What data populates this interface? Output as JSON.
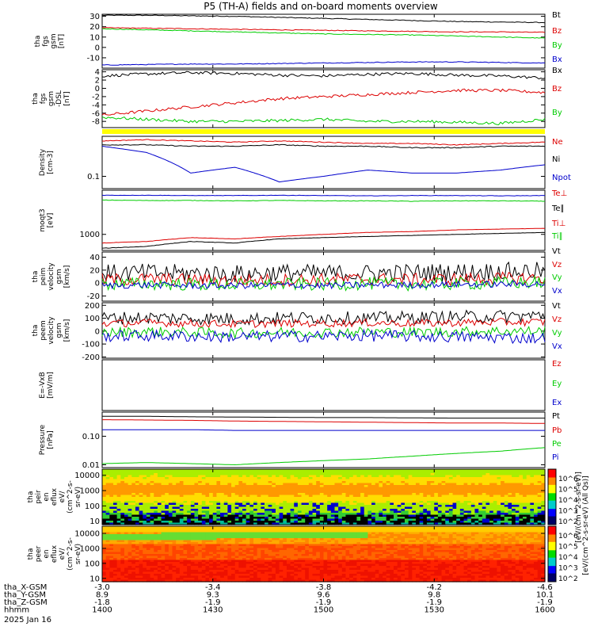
{
  "title": "P5 (TH-A) fields and on-board moments overview",
  "colors": {
    "black": "#000000",
    "red": "#dd0000",
    "green": "#00cc00",
    "blue": "#0000cc",
    "yellow": "#ffff00"
  },
  "chart_data": [
    {
      "type": "line",
      "id": "fgs-gsm",
      "ylabel_lines": [
        "tha",
        "fgs",
        "gsm",
        "[nT]"
      ],
      "ylim": [
        -20,
        32
      ],
      "yticks": [
        "30",
        "20",
        "10",
        "0",
        "-10"
      ],
      "ytick_values": [
        30,
        20,
        10,
        0,
        -10
      ],
      "legend": [
        "Bt",
        "Bz",
        "By",
        "Bx"
      ],
      "series": [
        {
          "name": "Bt",
          "color": "black",
          "values": [
            31,
            31,
            30.5,
            30,
            29,
            28,
            27,
            26,
            25,
            24.5,
            24
          ]
        },
        {
          "name": "Bz",
          "color": "red",
          "values": [
            19,
            18.5,
            18,
            17.5,
            17,
            16.5,
            16,
            15.5,
            15,
            15,
            14.5
          ]
        },
        {
          "name": "By",
          "color": "green",
          "values": [
            18,
            17,
            16,
            15,
            14,
            13,
            12.5,
            12,
            11,
            10,
            9
          ]
        },
        {
          "name": "Bx",
          "color": "blue",
          "values": [
            -17,
            -16.5,
            -16,
            -16,
            -15.5,
            -15,
            -14.5,
            -14,
            -14,
            -14.5,
            -15
          ]
        }
      ]
    },
    {
      "type": "line",
      "id": "fgs-gsm-dsl",
      "ylabel_lines": [
        "tha",
        "fgs",
        "gsm",
        "-DSL",
        "[nT]"
      ],
      "ylim": [
        -9.5,
        4.5
      ],
      "yticks": [
        "4",
        "2",
        "0",
        "-2",
        "-4",
        "-6",
        "-8"
      ],
      "ytick_values": [
        4,
        2,
        0,
        -2,
        -4,
        -6,
        -8
      ],
      "legend": [
        "Bx",
        "Bz",
        "By"
      ],
      "series": [
        {
          "name": "Bx",
          "color": "black",
          "values": [
            3,
            3.5,
            3.8,
            3.6,
            3.2,
            3,
            3.4,
            3.6,
            3.2,
            3,
            2.5
          ]
        },
        {
          "name": "Bz",
          "color": "red",
          "values": [
            -6.5,
            -5.5,
            -4.5,
            -3.5,
            -2.5,
            -2,
            -1.5,
            -1,
            -0.5,
            -0.5,
            -1
          ]
        },
        {
          "name": "By",
          "color": "green",
          "values": [
            -7,
            -7.5,
            -8,
            -8,
            -7.8,
            -7.5,
            -8,
            -8,
            -8.2,
            -8.5,
            -7.5
          ]
        }
      ]
    },
    {
      "type": "line",
      "id": "density",
      "ylabel_lines": [
        "Density",
        "[cm-3]"
      ],
      "scale": "log",
      "ylim": [
        0.07,
        0.32
      ],
      "yticks": [
        "0.1"
      ],
      "ytick_values": [
        0.1
      ],
      "legend": [
        "Ne",
        "Ni",
        "Npot"
      ],
      "series": [
        {
          "name": "Ne",
          "color": "red",
          "values": [
            0.28,
            0.29,
            0.28,
            0.27,
            0.28,
            0.27,
            0.26,
            0.26,
            0.25,
            0.26,
            0.27
          ]
        },
        {
          "name": "Ni",
          "color": "black",
          "values": [
            0.25,
            0.25,
            0.24,
            0.24,
            0.25,
            0.24,
            0.24,
            0.23,
            0.23,
            0.24,
            0.24
          ]
        },
        {
          "name": "Npot",
          "color": "blue",
          "values": [
            0.24,
            0.2,
            0.11,
            0.13,
            0.085,
            0.1,
            0.12,
            0.11,
            0.11,
            0.12,
            0.14
          ]
        }
      ]
    },
    {
      "type": "line",
      "id": "temperature",
      "ylabel_lines": [
        "moqt3",
        "[eV]"
      ],
      "scale": "log",
      "ylim": [
        450,
        9000
      ],
      "yticks": [
        "1000"
      ],
      "ytick_values": [
        1000
      ],
      "legend": [
        "Te⊥",
        "Te∥",
        "Ti⊥",
        "Ti∥"
      ],
      "series": [
        {
          "name": "Te⊥",
          "color": "blue",
          "values": [
            7000,
            7000,
            6900,
            6900,
            7000,
            6900,
            6800,
            6900,
            6900,
            6800,
            6900
          ]
        },
        {
          "name": "Te∥",
          "color": "green",
          "values": [
            5500,
            5400,
            5400,
            5300,
            5400,
            5300,
            5300,
            5200,
            5300,
            5300,
            5200
          ]
        },
        {
          "name": "Ti⊥",
          "color": "red",
          "values": [
            650,
            700,
            850,
            800,
            900,
            1000,
            1100,
            1150,
            1250,
            1300,
            1350
          ]
        },
        {
          "name": "Ti∥",
          "color": "black",
          "values": [
            500,
            550,
            700,
            650,
            800,
            850,
            900,
            950,
            1000,
            1050,
            1100
          ]
        }
      ]
    },
    {
      "type": "line",
      "id": "peim-velocity",
      "ylabel_lines": [
        "tha",
        "peim",
        "velocity",
        "gsm",
        "[km/s]"
      ],
      "ylim": [
        -28,
        48
      ],
      "yticks": [
        "40",
        "20",
        "0",
        "-20"
      ],
      "ytick_values": [
        40,
        20,
        0,
        -20
      ],
      "legend": [
        "Vt",
        "Vz",
        "Vy",
        "Vx"
      ],
      "series": [
        {
          "name": "Vt",
          "color": "black",
          "values": [
            15,
            16,
            15,
            14,
            16,
            15,
            15,
            16,
            17,
            18,
            19
          ]
        },
        {
          "name": "Vz",
          "color": "red",
          "values": [
            5,
            6,
            5,
            4,
            5,
            5,
            6,
            5,
            6,
            7,
            8
          ]
        },
        {
          "name": "Vy",
          "color": "green",
          "values": [
            -2,
            -1,
            -2,
            -3,
            -2,
            -2,
            -1,
            -2,
            -1,
            0,
            1
          ]
        },
        {
          "name": "Vx",
          "color": "blue",
          "values": [
            -4,
            -3,
            -4,
            -4,
            -3,
            -4,
            -3,
            -3,
            -2,
            -2,
            -1
          ]
        }
      ]
    },
    {
      "type": "line",
      "id": "peem-velocity",
      "ylabel_lines": [
        "tha",
        "peem",
        "velocity",
        "gsm",
        "[km/s]"
      ],
      "ylim": [
        -210,
        220
      ],
      "yticks": [
        "200",
        "100",
        "0",
        "-100",
        "-200"
      ],
      "ytick_values": [
        200,
        100,
        0,
        -100,
        -200
      ],
      "legend": [
        "Vt",
        "Vz",
        "Vy",
        "Vx"
      ],
      "series": [
        {
          "name": "Vt",
          "color": "black",
          "values": [
            100,
            105,
            100,
            95,
            100,
            105,
            100,
            105,
            110,
            115,
            120
          ]
        },
        {
          "name": "Vz",
          "color": "red",
          "values": [
            60,
            65,
            60,
            55,
            60,
            60,
            65,
            60,
            65,
            70,
            70
          ]
        },
        {
          "name": "Vy",
          "color": "green",
          "values": [
            -10,
            -5,
            -10,
            -15,
            -10,
            -10,
            -5,
            -10,
            -5,
            0,
            0
          ]
        },
        {
          "name": "Vx",
          "color": "blue",
          "values": [
            -40,
            -35,
            -40,
            -45,
            -40,
            -40,
            -35,
            -40,
            -45,
            -50,
            -55
          ]
        }
      ]
    },
    {
      "type": "line",
      "id": "exb",
      "ylabel_lines": [
        "E=-VxB",
        "[mV/m]"
      ],
      "ylim": [
        0,
        1
      ],
      "yticks": [],
      "ytick_values": [],
      "legend": [
        "Ez",
        "Ey",
        "Ex"
      ],
      "series": []
    },
    {
      "type": "line",
      "id": "pressure",
      "ylabel_lines": [
        "Pressure",
        "[nPa]"
      ],
      "scale": "log",
      "ylim": [
        0.008,
        0.7
      ],
      "yticks": [
        "0.10",
        "0.01"
      ],
      "ytick_values": [
        0.1,
        0.01
      ],
      "legend": [
        "Pt",
        "Pb",
        "Pe",
        "Pi"
      ],
      "series": [
        {
          "name": "Pt",
          "color": "black",
          "values": [
            0.5,
            0.5,
            0.48,
            0.47,
            0.46,
            0.45,
            0.45,
            0.44,
            0.43,
            0.43,
            0.43
          ]
        },
        {
          "name": "Pb",
          "color": "red",
          "values": [
            0.38,
            0.37,
            0.36,
            0.34,
            0.33,
            0.32,
            0.31,
            0.3,
            0.29,
            0.29,
            0.28
          ]
        },
        {
          "name": "Pe",
          "color": "blue",
          "values": [
            0.17,
            0.17,
            0.17,
            0.16,
            0.16,
            0.16,
            0.16,
            0.16,
            0.16,
            0.16,
            0.16
          ]
        },
        {
          "name": "Pi",
          "color": "green",
          "values": [
            0.011,
            0.012,
            0.011,
            0.01,
            0.012,
            0.014,
            0.016,
            0.02,
            0.025,
            0.03,
            0.04
          ]
        }
      ]
    },
    {
      "type": "heatmap",
      "id": "peir-eflux",
      "ylabel_lines": [
        "tha",
        "peir",
        "en",
        "eflux",
        "eV/",
        "(cm^2-s-",
        "sr-eV)"
      ],
      "scale": "log",
      "ylim": [
        6,
        25000
      ],
      "yticks": [
        "10000",
        "1000",
        "100",
        "10"
      ],
      "ytick_values": [
        10000,
        1000,
        100,
        10
      ]
    },
    {
      "type": "heatmap",
      "id": "peer-eflux",
      "ylabel_lines": [
        "tha",
        "peer",
        "en",
        "eflux",
        "eV/",
        "(cm^2-s-",
        "sr-eV)"
      ],
      "scale": "log",
      "ylim": [
        6,
        30000
      ],
      "yticks": [
        "10000",
        "1000",
        "100",
        "10"
      ],
      "ytick_values": [
        10000,
        1000,
        100,
        10
      ]
    }
  ],
  "colorbar": {
    "label": "[eV/(cm^2-s-sr-eV) (All Qs)]",
    "label2": "[eV/(cm^2-s-sr-eV)]",
    "top_ticks": [
      "10^6",
      "10^5",
      "10^4",
      "10^3",
      "10^2"
    ],
    "bottom_ticks": [
      "10^6",
      "10^5",
      "10^4",
      "10^3",
      "10^2"
    ]
  },
  "xaxis": {
    "rows": [
      {
        "label": "tha_X-GSM",
        "values": [
          "-3.0",
          "-3.4",
          "-3.8",
          "-4.2",
          "-4.6"
        ]
      },
      {
        "label": "tha_Y-GSM",
        "values": [
          "8.9",
          "9.3",
          "9.6",
          "9.8",
          "10.1"
        ]
      },
      {
        "label": "tha_Z-GSM",
        "values": [
          "-1.8",
          "-1.9",
          "-1.9",
          "-1.9",
          "-1.9"
        ]
      },
      {
        "label": "hhmm",
        "values": [
          "1400",
          "1430",
          "1500",
          "1530",
          "1600"
        ]
      }
    ],
    "date": "2025 Jan 16"
  }
}
